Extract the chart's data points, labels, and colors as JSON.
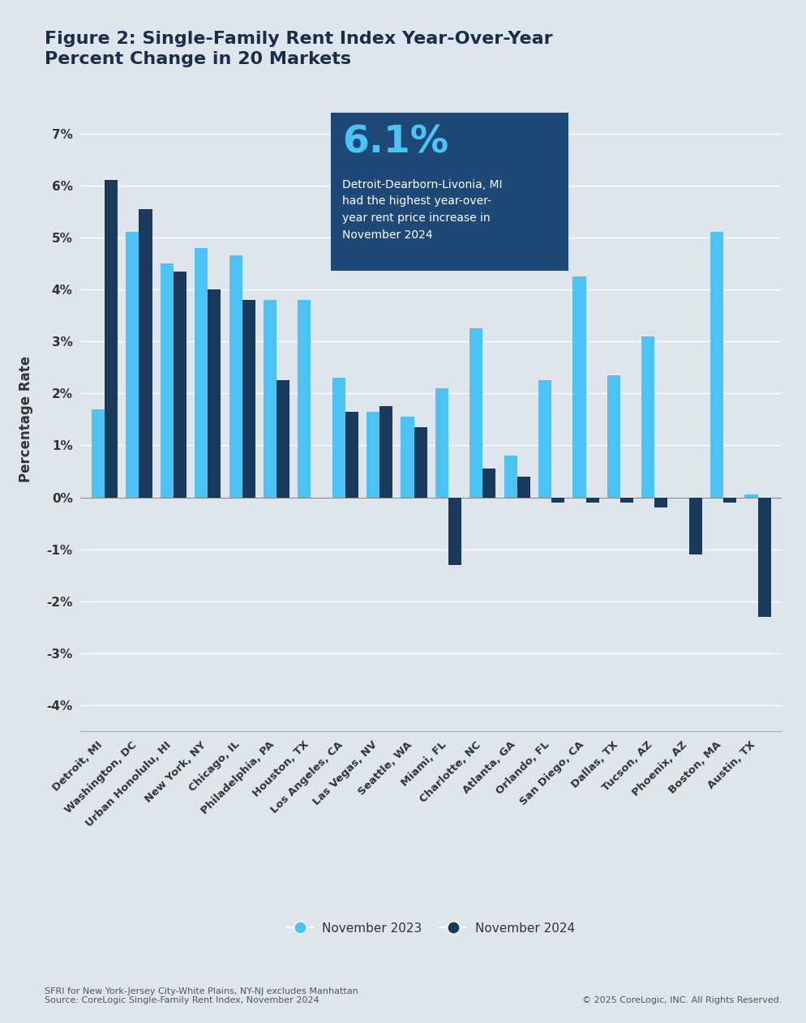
{
  "title": "Figure 2: Single-Family Rent Index Year-Over-Year\nPercent Change in 20 Markets",
  "ylabel": "Percentage Rate",
  "background_color": "#dfe5ed",
  "plot_bg_color": "#dfe5ed",
  "categories": [
    "Detroit, MI",
    "Washington, DC",
    "Urban Honolulu, HI",
    "New York, NY",
    "Chicago, IL",
    "Philadelphia, PA",
    "Houston, TX",
    "Los Angeles, CA",
    "Las Vegas, NV",
    "Seattle, WA",
    "Miami, FL",
    "Charlotte, NC",
    "Atlanta, GA",
    "Orlando, FL",
    "San Diego, CA",
    "Dallas, TX",
    "Tucson, AZ",
    "Phoenix, AZ",
    "Boston, MA",
    "Austin, TX"
  ],
  "nov2023": [
    1.7,
    5.1,
    4.5,
    4.8,
    4.65,
    3.8,
    3.8,
    2.3,
    1.65,
    1.55,
    2.1,
    3.25,
    0.8,
    2.25,
    4.25,
    2.35,
    3.1,
    0.0,
    5.1,
    0.05
  ],
  "nov2024": [
    6.1,
    5.55,
    4.35,
    4.0,
    3.8,
    2.25,
    0.0,
    1.65,
    1.75,
    1.35,
    -1.3,
    0.55,
    0.4,
    -0.1,
    -0.1,
    -0.1,
    -0.2,
    -1.1,
    -0.1,
    -2.3
  ],
  "color_2023": "#4dc3f5",
  "color_2024": "#1a3a5c",
  "annotation_box_color": "#1e4976",
  "annotation_text_big": "6.1%",
  "annotation_text_small": "Detroit-Dearborn-Livonia, MI\nhad the highest year-over-\nyear rent price increase in\nNovember 2024",
  "ylim_min": -4.5,
  "ylim_max": 7.5,
  "yticks": [
    -4,
    -3,
    -2,
    -1,
    0,
    1,
    2,
    3,
    4,
    5,
    6,
    7
  ],
  "footer_left": "SFRI for New York-Jersey City-White Plains, NY-NJ excludes Manhattan\nSource: CoreLogic Single-Family Rent Index, November 2024",
  "footer_right": "© 2025 CoreLogic, INC. All Rights Reserved.",
  "legend_2023": "November 2023",
  "legend_2024": "November 2024"
}
